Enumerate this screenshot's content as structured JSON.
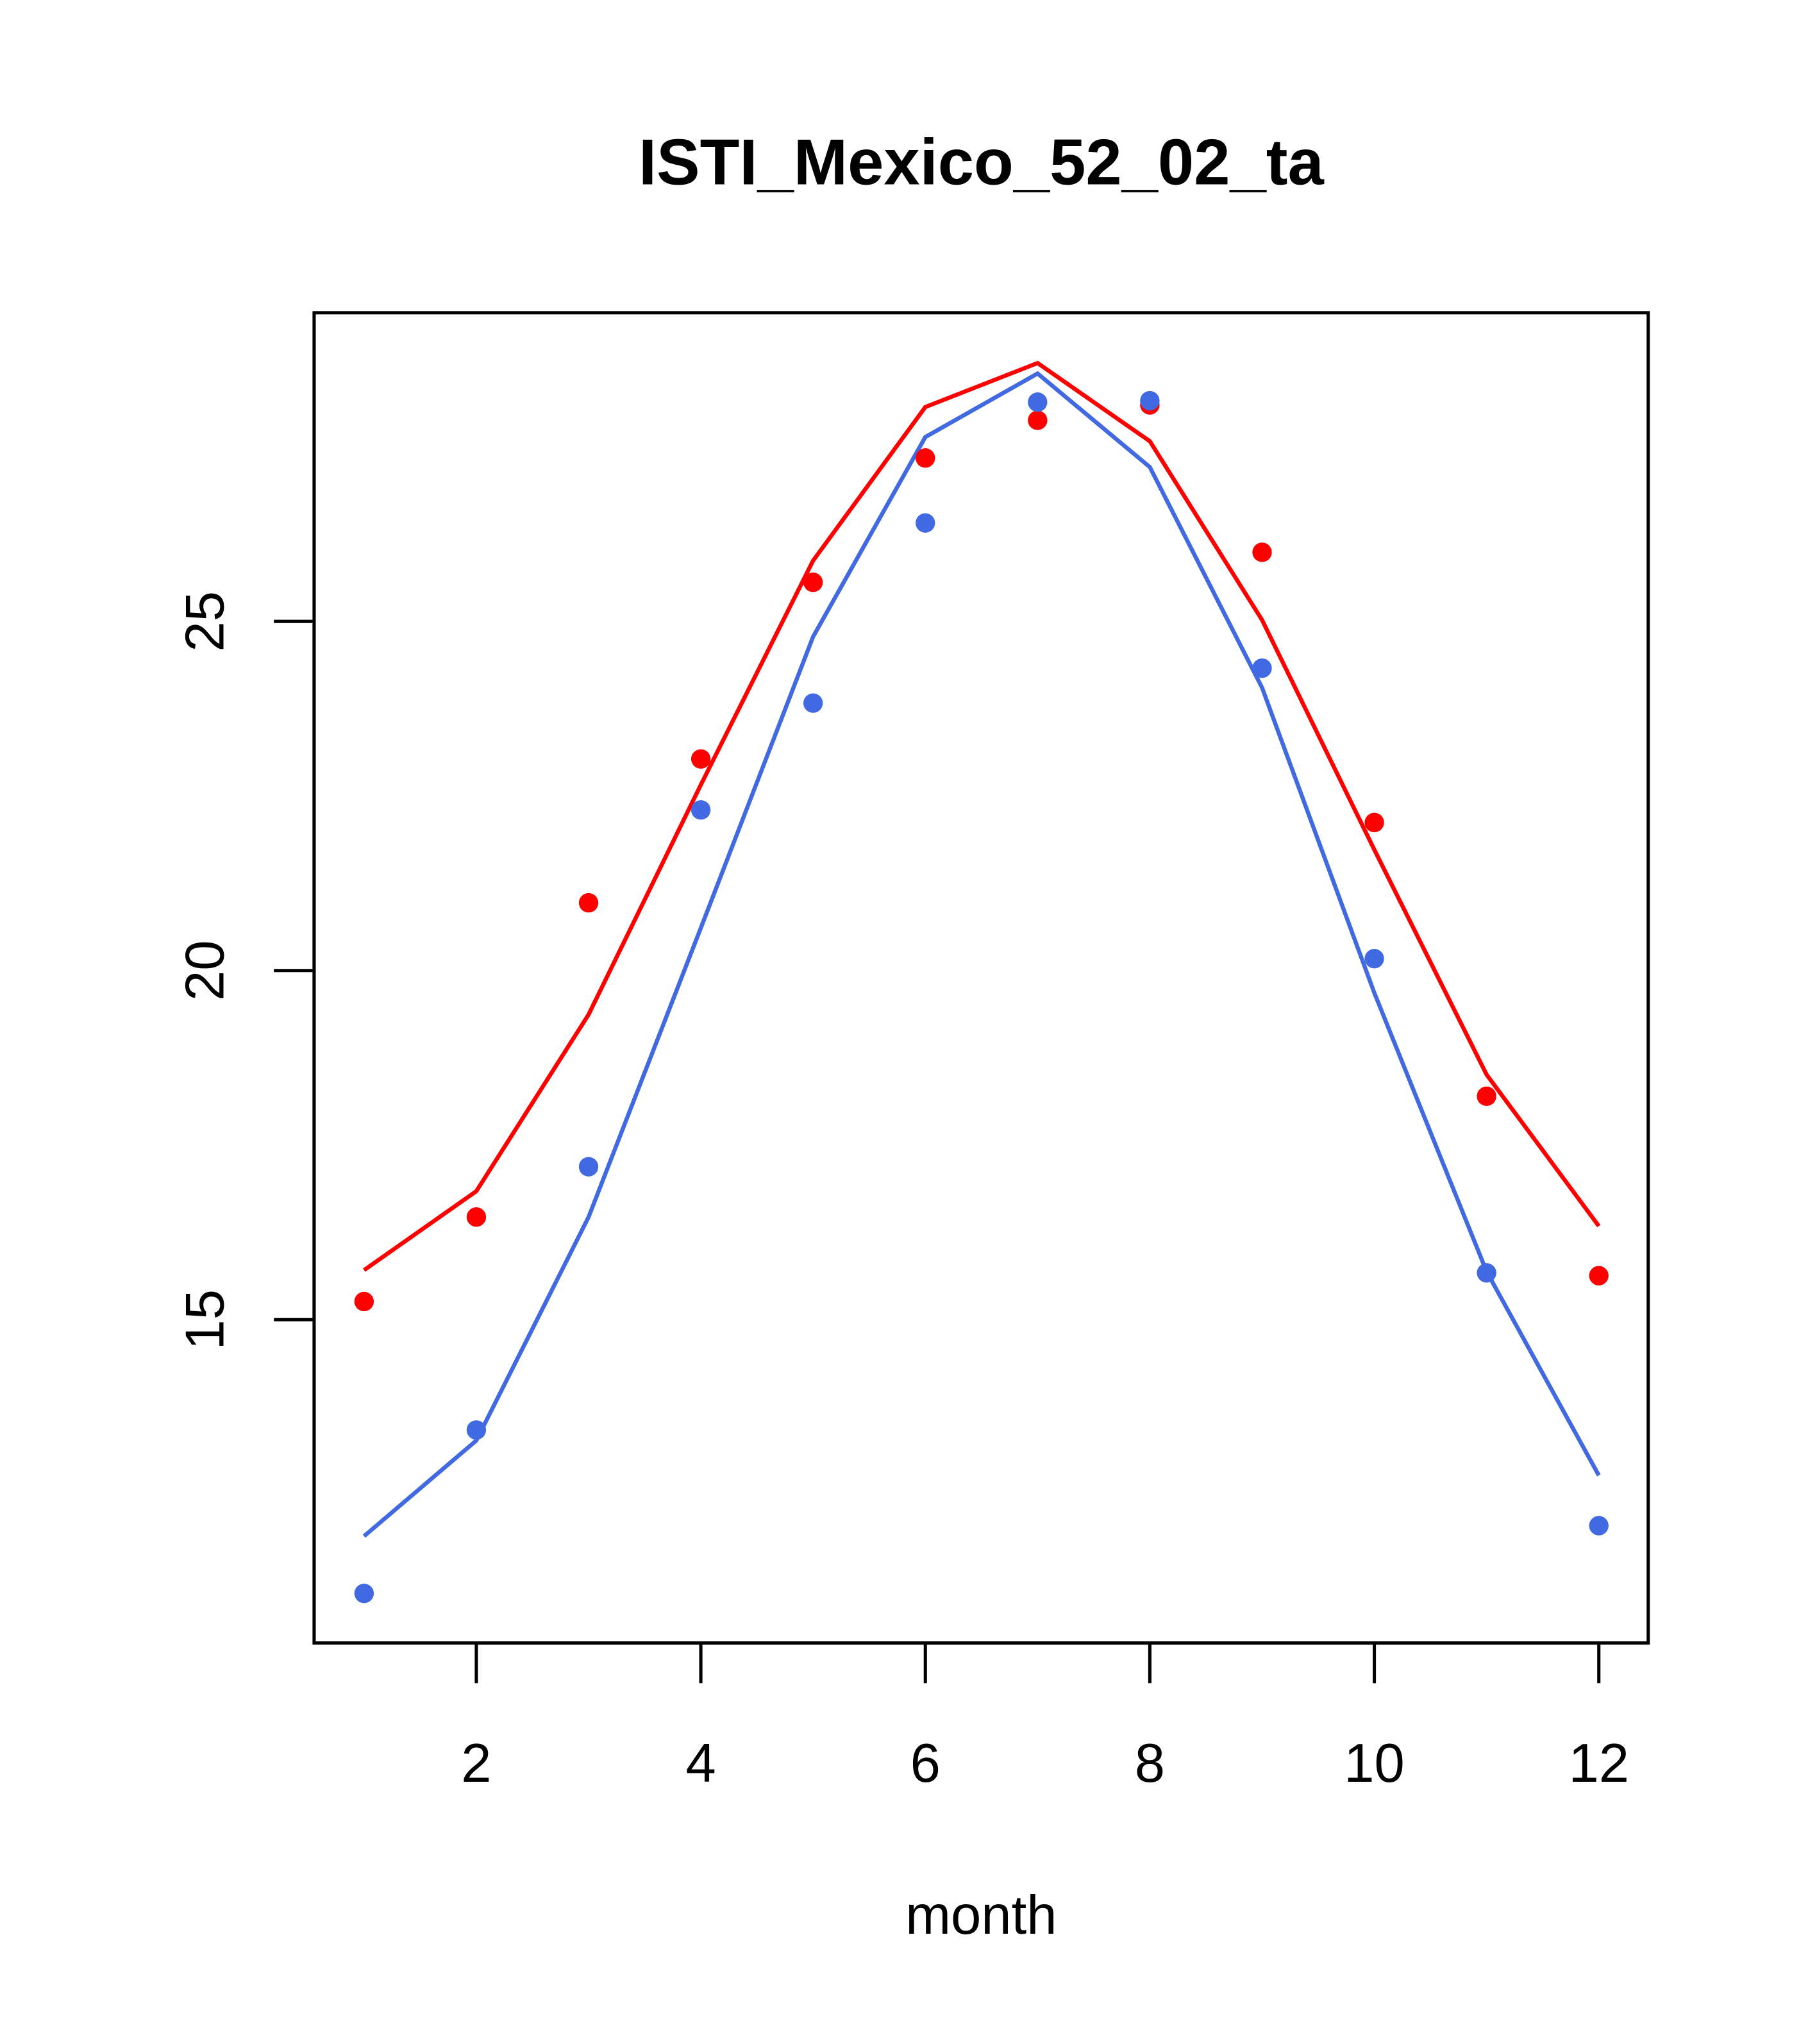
{
  "chart_data": {
    "type": "line",
    "title": "ISTI_Mexico_52_02_ta",
    "xlabel": "month",
    "ylabel": "",
    "xlim": [
      0.555,
      12.44
    ],
    "ylim": [
      10.37,
      29.42
    ],
    "x_ticks": [
      2,
      4,
      6,
      8,
      10,
      12
    ],
    "x_tick_labels": [
      "2",
      "4",
      "6",
      "8",
      "10",
      "12"
    ],
    "y_ticks": [
      15,
      20,
      25
    ],
    "y_tick_labels": [
      "15",
      "20",
      "25"
    ],
    "grid": false,
    "x": [
      1,
      2,
      3,
      4,
      5,
      6,
      7,
      8,
      9,
      10,
      11,
      12
    ],
    "series": [
      {
        "name": "red-line",
        "kind": "line",
        "color": "#FF0000",
        "values": [
          15.71,
          16.84,
          19.37,
          22.66,
          25.87,
          28.07,
          28.7,
          27.58,
          25.02,
          21.73,
          18.51,
          16.34
        ]
      },
      {
        "name": "red-points",
        "kind": "points",
        "color": "#FF0000",
        "values": [
          15.26,
          16.47,
          20.97,
          23.03,
          25.56,
          27.34,
          27.88,
          28.1,
          25.99,
          22.12,
          18.2,
          15.63
        ]
      },
      {
        "name": "blue-line",
        "kind": "line",
        "color": "#4169E1",
        "values": [
          11.9,
          13.27,
          16.47,
          20.61,
          24.78,
          27.64,
          28.55,
          27.21,
          24.05,
          19.68,
          15.69,
          12.77
        ]
      },
      {
        "name": "blue-points",
        "kind": "points",
        "color": "#4169E1",
        "values": [
          11.08,
          13.42,
          17.19,
          22.3,
          23.83,
          26.41,
          28.14,
          28.16,
          24.33,
          20.17,
          15.67,
          12.05
        ]
      }
    ]
  }
}
